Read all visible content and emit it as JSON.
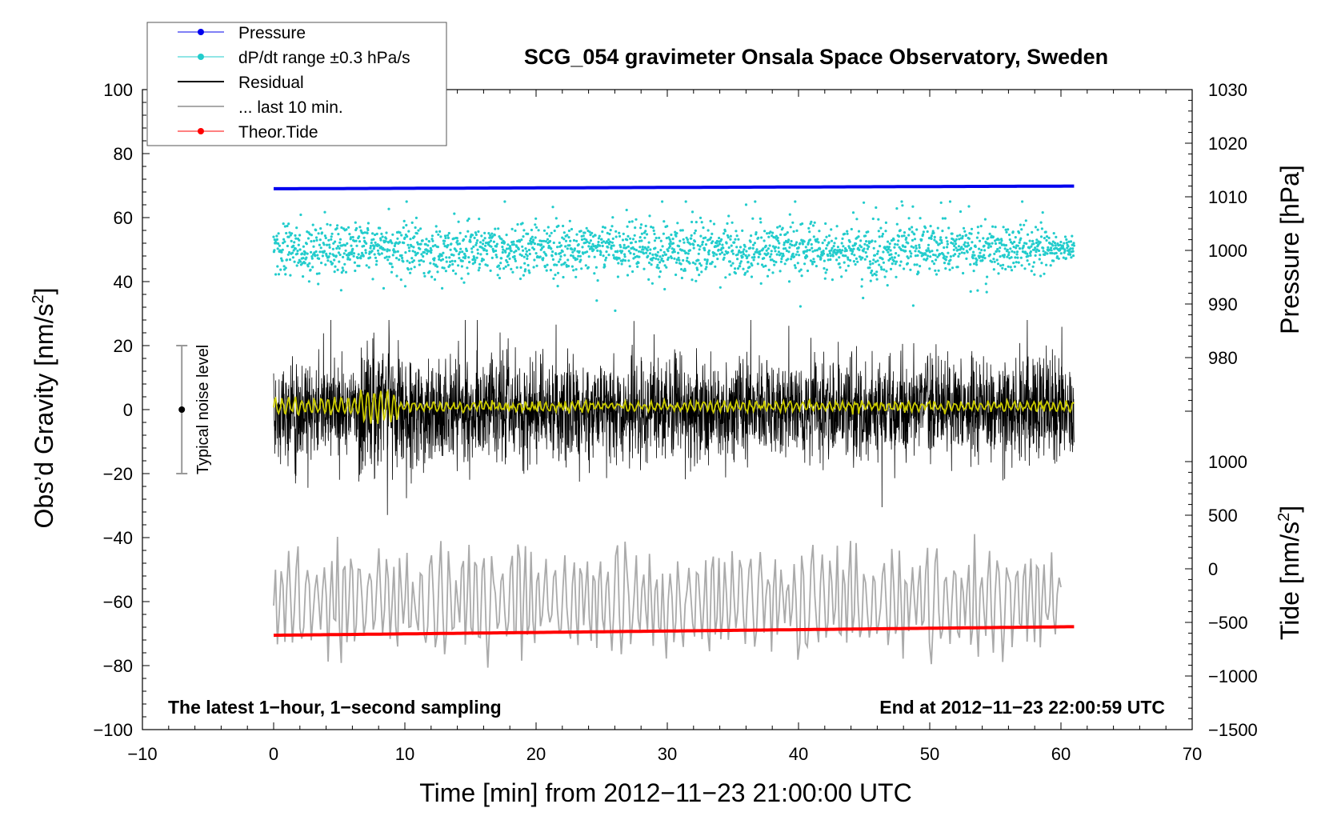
{
  "chart_data": {
    "type": "line",
    "title": "SCG_054 gravimeter Onsala Space Observatory, Sweden",
    "xlabel": "Time [min] from 2012−11−23 21:00:00 UTC",
    "ylabel_main": "Obs’d Gravity [nm/s",
    "ylabel_main_sup": "2",
    "ylabel_main_end": "]",
    "ylabel_pressure": "Pressure [hPa]",
    "ylabel_tide": "Tide [nm/s",
    "ylabel_tide_sup": "2",
    "ylabel_tide_end": "]",
    "xlim": [
      -10,
      70
    ],
    "ylim": [
      -100,
      100
    ],
    "x_ticks": [
      -10,
      0,
      10,
      20,
      30,
      40,
      50,
      60,
      70
    ],
    "x_tick_labels": [
      "−10",
      "0",
      "10",
      "20",
      "30",
      "40",
      "50",
      "60",
      "70"
    ],
    "y_ticks": [
      -100,
      -80,
      -60,
      -40,
      -20,
      0,
      20,
      40,
      60,
      80,
      100
    ],
    "y_tick_labels": [
      "−100",
      "−80",
      "−60",
      "−40",
      "−20",
      "0",
      "20",
      "40",
      "60",
      "80",
      "100"
    ],
    "pressure_axis": {
      "range": [
        970,
        1030
      ],
      "ticks": [
        980,
        990,
        1000,
        1010,
        1020,
        1030
      ],
      "tick_labels": [
        "980",
        "990",
        "1000",
        "1010",
        "1020",
        "1030"
      ]
    },
    "tide_axis": {
      "range": [
        -1500,
        1000
      ],
      "ticks": [
        -1500,
        -1000,
        -500,
        0,
        500,
        1000
      ],
      "tick_labels": [
        "−1500",
        "−1000",
        "−500",
        "0",
        "500",
        "1000"
      ]
    },
    "legend": {
      "placement": "top-left",
      "entries": [
        {
          "label": "Pressure",
          "color": "#0000ee",
          "marker": true
        },
        {
          "label": "dP/dt range ±0.3 hPa/s",
          "color": "#22cccc",
          "marker": true
        },
        {
          "label": "Residual",
          "color": "#000000",
          "marker": false
        },
        {
          "label": "... last 10 min.",
          "color": "#aaaaaa",
          "marker": false
        },
        {
          "label": "Theor.Tide",
          "color": "#ff0000",
          "marker": true
        }
      ]
    },
    "noise_bar": {
      "label": "Typical noise level",
      "x": -7,
      "center": 0,
      "half_range": 20
    },
    "annotations": {
      "bottom_left": "The latest 1−hour, 1−second sampling",
      "bottom_right": "End at 2012−11−23 22:00:59 UTC"
    },
    "series": [
      {
        "name": "Pressure",
        "axis": "pressure",
        "color": "#0000ee",
        "x_start": 0,
        "x_end": 61,
        "start": 1011.5,
        "end": 1012.0
      },
      {
        "name": "dP/dt range ±0.3 hPa/s",
        "axis": "main",
        "color": "#22cccc",
        "x_start": 0,
        "x_end": 61,
        "center": 50,
        "typical_spread": 4,
        "min": 30,
        "max": 65
      },
      {
        "name": "Residual",
        "axis": "main",
        "color": "#000000",
        "x_start": 0,
        "x_end": 61,
        "center": 0,
        "typical_spread": 12,
        "min": -34,
        "max": 28
      },
      {
        "name": "Residual (smoothed)",
        "axis": "main",
        "color": "#cccc00",
        "x_start": 0,
        "x_end": 61,
        "center": 1,
        "typical_spread": 2
      },
      {
        "name": "... last 10 min.",
        "axis": "main",
        "color": "#aaaaaa",
        "x_start": 0,
        "x_end": 60,
        "center": -60,
        "min": -82,
        "max": -37
      },
      {
        "name": "Theor.Tide",
        "axis": "tide",
        "color": "#ff0000",
        "x_start": 0,
        "x_end": 61,
        "start": -620,
        "end": -540
      }
    ]
  }
}
